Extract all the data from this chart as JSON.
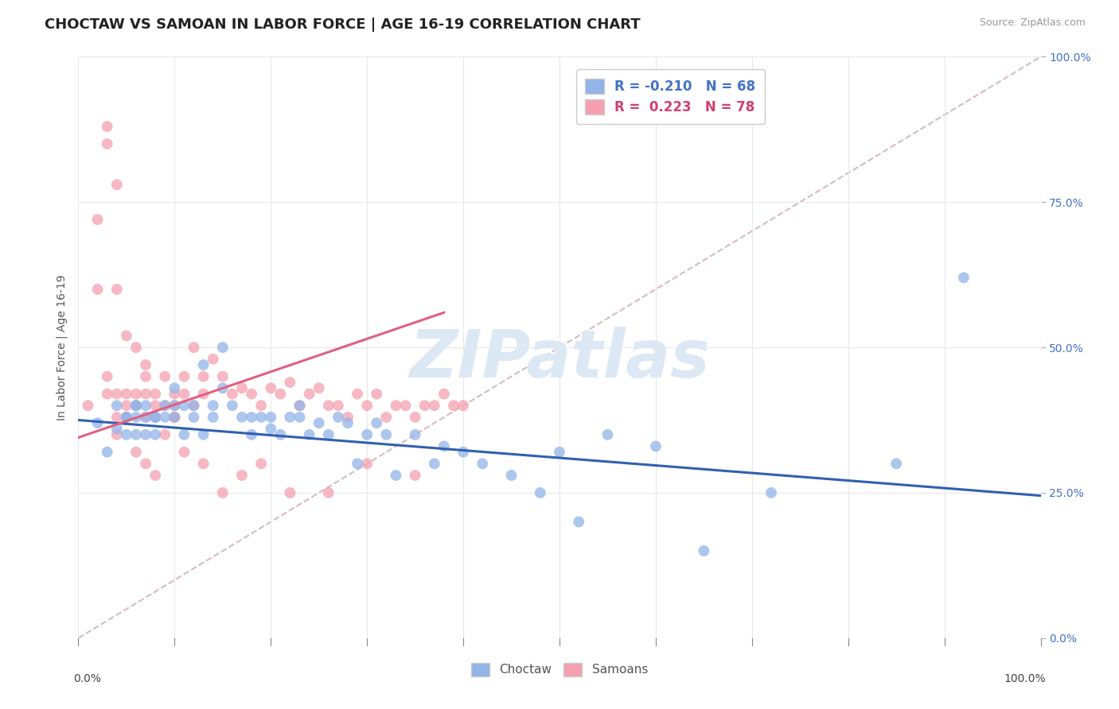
{
  "title": "CHOCTAW VS SAMOAN IN LABOR FORCE | AGE 16-19 CORRELATION CHART",
  "source_text": "Source: ZipAtlas.com",
  "ylabel": "In Labor Force | Age 16-19",
  "xlim": [
    0.0,
    1.0
  ],
  "ylim": [
    0.0,
    1.0
  ],
  "yticks": [
    0.0,
    0.25,
    0.5,
    0.75,
    1.0
  ],
  "yticklabels": [
    "0.0%",
    "25.0%",
    "50.0%",
    "75.0%",
    "100.0%"
  ],
  "choctaw_color": "#92b4e8",
  "samoan_color": "#f4a0b0",
  "choctaw_line_color": "#3060b0",
  "samoan_line_color": "#e06080",
  "ref_line_color": "#d0b0b8",
  "watermark_color": "#dde8f5",
  "R_choctaw": -0.21,
  "N_choctaw": 68,
  "R_samoan": 0.223,
  "N_samoan": 78,
  "legend_R_choctaw_color": "#4472c4",
  "legend_R_samoan_color": "#d04070",
  "choctaw_line_x0": 0.0,
  "choctaw_line_y0": 0.375,
  "choctaw_line_x1": 1.0,
  "choctaw_line_y1": 0.245,
  "samoan_line_x0": 0.0,
  "samoan_line_y0": 0.345,
  "samoan_line_x1": 0.38,
  "samoan_line_y1": 0.56,
  "choctaw_x": [
    0.02,
    0.03,
    0.04,
    0.04,
    0.05,
    0.05,
    0.05,
    0.06,
    0.06,
    0.06,
    0.06,
    0.07,
    0.07,
    0.07,
    0.08,
    0.08,
    0.08,
    0.09,
    0.09,
    0.1,
    0.1,
    0.1,
    0.11,
    0.11,
    0.12,
    0.12,
    0.13,
    0.13,
    0.14,
    0.14,
    0.15,
    0.16,
    0.17,
    0.18,
    0.18,
    0.19,
    0.2,
    0.2,
    0.21,
    0.22,
    0.23,
    0.23,
    0.24,
    0.25,
    0.26,
    0.27,
    0.28,
    0.29,
    0.3,
    0.31,
    0.32,
    0.33,
    0.35,
    0.37,
    0.38,
    0.4,
    0.42,
    0.45,
    0.48,
    0.5,
    0.52,
    0.55,
    0.6,
    0.65,
    0.72,
    0.85,
    0.92,
    0.15
  ],
  "choctaw_y": [
    0.37,
    0.32,
    0.4,
    0.36,
    0.38,
    0.35,
    0.38,
    0.4,
    0.35,
    0.38,
    0.4,
    0.38,
    0.35,
    0.4,
    0.38,
    0.35,
    0.38,
    0.4,
    0.38,
    0.43,
    0.4,
    0.38,
    0.4,
    0.35,
    0.4,
    0.38,
    0.47,
    0.35,
    0.38,
    0.4,
    0.43,
    0.4,
    0.38,
    0.35,
    0.38,
    0.38,
    0.36,
    0.38,
    0.35,
    0.38,
    0.38,
    0.4,
    0.35,
    0.37,
    0.35,
    0.38,
    0.37,
    0.3,
    0.35,
    0.37,
    0.35,
    0.28,
    0.35,
    0.3,
    0.33,
    0.32,
    0.3,
    0.28,
    0.25,
    0.32,
    0.2,
    0.35,
    0.33,
    0.15,
    0.25,
    0.3,
    0.62,
    0.5
  ],
  "samoan_x": [
    0.01,
    0.02,
    0.02,
    0.03,
    0.03,
    0.03,
    0.04,
    0.04,
    0.04,
    0.05,
    0.05,
    0.05,
    0.06,
    0.06,
    0.06,
    0.07,
    0.07,
    0.07,
    0.08,
    0.08,
    0.08,
    0.09,
    0.09,
    0.1,
    0.1,
    0.1,
    0.11,
    0.11,
    0.12,
    0.12,
    0.13,
    0.13,
    0.14,
    0.15,
    0.16,
    0.17,
    0.18,
    0.19,
    0.2,
    0.21,
    0.22,
    0.23,
    0.24,
    0.25,
    0.26,
    0.27,
    0.28,
    0.29,
    0.3,
    0.31,
    0.32,
    0.33,
    0.34,
    0.35,
    0.36,
    0.37,
    0.38,
    0.39,
    0.4,
    0.07,
    0.08,
    0.09,
    0.1,
    0.11,
    0.13,
    0.15,
    0.17,
    0.19,
    0.22,
    0.26,
    0.3,
    0.35,
    0.04,
    0.05,
    0.06,
    0.03,
    0.04,
    0.07
  ],
  "samoan_y": [
    0.4,
    0.72,
    0.6,
    0.88,
    0.85,
    0.42,
    0.38,
    0.78,
    0.6,
    0.4,
    0.52,
    0.42,
    0.4,
    0.5,
    0.42,
    0.42,
    0.38,
    0.45,
    0.42,
    0.4,
    0.38,
    0.45,
    0.4,
    0.42,
    0.38,
    0.4,
    0.42,
    0.45,
    0.4,
    0.5,
    0.42,
    0.45,
    0.48,
    0.45,
    0.42,
    0.43,
    0.42,
    0.4,
    0.43,
    0.42,
    0.44,
    0.4,
    0.42,
    0.43,
    0.4,
    0.4,
    0.38,
    0.42,
    0.4,
    0.42,
    0.38,
    0.4,
    0.4,
    0.38,
    0.4,
    0.4,
    0.42,
    0.4,
    0.4,
    0.3,
    0.28,
    0.35,
    0.38,
    0.32,
    0.3,
    0.25,
    0.28,
    0.3,
    0.25,
    0.25,
    0.3,
    0.28,
    0.35,
    0.38,
    0.32,
    0.45,
    0.42,
    0.47
  ],
  "background_color": "#ffffff",
  "grid_color": "#e8e8e8",
  "title_fontsize": 13,
  "axis_label_fontsize": 10,
  "tick_fontsize": 10,
  "watermark": "ZIPatlas",
  "watermark_fontsize": 60
}
